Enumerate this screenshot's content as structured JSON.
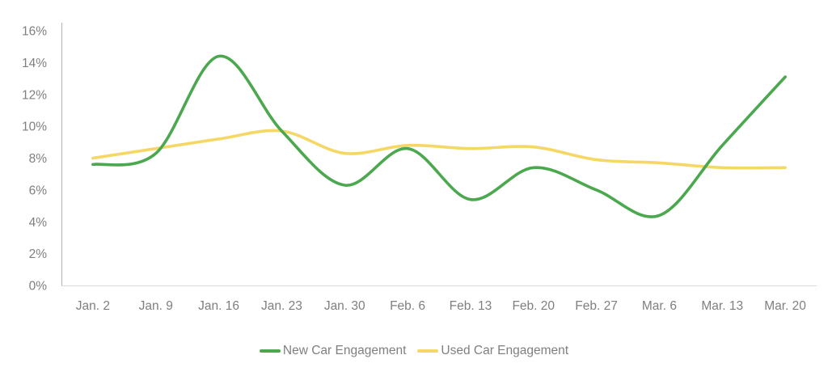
{
  "chart_data": {
    "type": "line",
    "title": "",
    "xlabel": "",
    "ylabel": "",
    "categories": [
      "Jan. 2",
      "Jan. 9",
      "Jan. 16",
      "Jan. 23",
      "Jan. 30",
      "Feb. 6",
      "Feb. 13",
      "Feb. 20",
      "Feb. 27",
      "Mar. 6",
      "Mar. 13",
      "Mar. 20"
    ],
    "series": [
      {
        "name": "New Car Engagement",
        "color": "#4BA84F",
        "values": [
          7.6,
          8.3,
          14.4,
          9.7,
          6.3,
          8.6,
          5.4,
          7.4,
          6.0,
          4.4,
          8.8,
          13.1
        ]
      },
      {
        "name": "Used Car Engagement",
        "color": "#F5D765",
        "values": [
          8.0,
          8.6,
          9.2,
          9.7,
          8.3,
          8.8,
          8.6,
          8.7,
          7.9,
          7.7,
          7.4,
          7.4
        ]
      }
    ],
    "ylim": [
      0,
      16
    ],
    "y_tick_step": 2,
    "y_tick_labels": [
      "0%",
      "2%",
      "4%",
      "6%",
      "8%",
      "10%",
      "12%",
      "14%",
      "16%"
    ],
    "grid": false,
    "line_style": "smooth",
    "legend_position": "bottom"
  },
  "colors": {
    "background": "#ffffff",
    "y_axis_line": "#b3b3b3",
    "x_axis_line": "#d9d9d9",
    "tick_text": "#7f7f7f",
    "legend_text": "#7f7f7f"
  },
  "legend": {
    "items": [
      {
        "label": "New Car Engagement",
        "color": "#4BA84F"
      },
      {
        "label": "Used Car Engagement",
        "color": "#F5D765"
      }
    ]
  }
}
